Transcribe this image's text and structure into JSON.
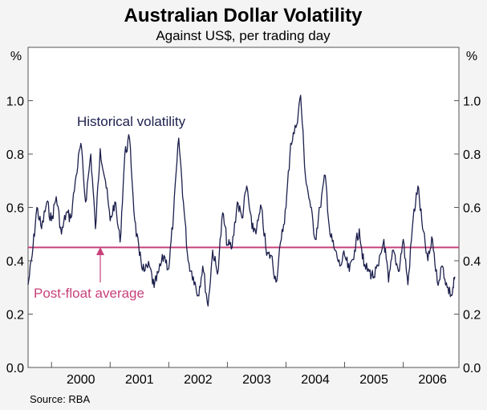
{
  "chart_data": {
    "type": "line",
    "title": "Australian Dollar Volatility",
    "subtitle": "Against US$, per trading day",
    "y_unit_left": "%",
    "y_unit_right": "%",
    "ylim": [
      0.0,
      1.2
    ],
    "y_ticks": [
      "0.0",
      "0.2",
      "0.4",
      "0.6",
      "0.8",
      "1.0"
    ],
    "xlim": [
      1999.6,
      2006.95
    ],
    "x_tick_labels": [
      "2000",
      "2001",
      "2002",
      "2003",
      "2004",
      "2005",
      "2006"
    ],
    "grid": false,
    "series": [
      {
        "name": "Historical volatility",
        "color": "#1c1f4c",
        "x": [
          1999.6,
          1999.67,
          1999.75,
          1999.83,
          1999.92,
          2000.0,
          2000.08,
          2000.17,
          2000.25,
          2000.33,
          2000.42,
          2000.5,
          2000.58,
          2000.67,
          2000.75,
          2000.83,
          2000.92,
          2001.0,
          2001.08,
          2001.17,
          2001.25,
          2001.33,
          2001.42,
          2001.5,
          2001.58,
          2001.67,
          2001.75,
          2001.83,
          2001.92,
          2002.0,
          2002.08,
          2002.17,
          2002.25,
          2002.33,
          2002.42,
          2002.5,
          2002.58,
          2002.67,
          2002.75,
          2002.83,
          2002.92,
          2003.0,
          2003.08,
          2003.17,
          2003.25,
          2003.33,
          2003.42,
          2003.5,
          2003.58,
          2003.67,
          2003.75,
          2003.83,
          2003.92,
          2004.0,
          2004.08,
          2004.17,
          2004.25,
          2004.33,
          2004.42,
          2004.5,
          2004.58,
          2004.67,
          2004.75,
          2004.83,
          2004.92,
          2005.0,
          2005.08,
          2005.17,
          2005.25,
          2005.33,
          2005.42,
          2005.5,
          2005.58,
          2005.67,
          2005.75,
          2005.83,
          2005.92,
          2006.0,
          2006.08,
          2006.17,
          2006.25,
          2006.33,
          2006.42,
          2006.5,
          2006.58,
          2006.67,
          2006.75,
          2006.83,
          2006.88
        ],
        "values": [
          0.31,
          0.42,
          0.6,
          0.52,
          0.62,
          0.55,
          0.64,
          0.5,
          0.58,
          0.56,
          0.72,
          0.84,
          0.62,
          0.8,
          0.52,
          0.82,
          0.7,
          0.55,
          0.62,
          0.47,
          0.8,
          0.86,
          0.55,
          0.42,
          0.36,
          0.38,
          0.3,
          0.36,
          0.42,
          0.37,
          0.57,
          0.86,
          0.62,
          0.4,
          0.34,
          0.27,
          0.38,
          0.23,
          0.44,
          0.35,
          0.58,
          0.46,
          0.45,
          0.62,
          0.56,
          0.68,
          0.52,
          0.52,
          0.6,
          0.42,
          0.42,
          0.32,
          0.48,
          0.6,
          0.84,
          0.9,
          1.02,
          0.72,
          0.6,
          0.48,
          0.6,
          0.72,
          0.5,
          0.44,
          0.38,
          0.42,
          0.36,
          0.44,
          0.52,
          0.38,
          0.36,
          0.34,
          0.38,
          0.48,
          0.32,
          0.44,
          0.36,
          0.48,
          0.31,
          0.56,
          0.68,
          0.52,
          0.4,
          0.48,
          0.32,
          0.38,
          0.3,
          0.27,
          0.34
        ]
      }
    ],
    "reference_line": {
      "name": "Post-float average",
      "value": 0.45,
      "color": "#c8417a"
    },
    "annotations": {
      "series_label": "Historical volatility",
      "reference_label": "Post-float average"
    },
    "source": "Source: RBA"
  }
}
